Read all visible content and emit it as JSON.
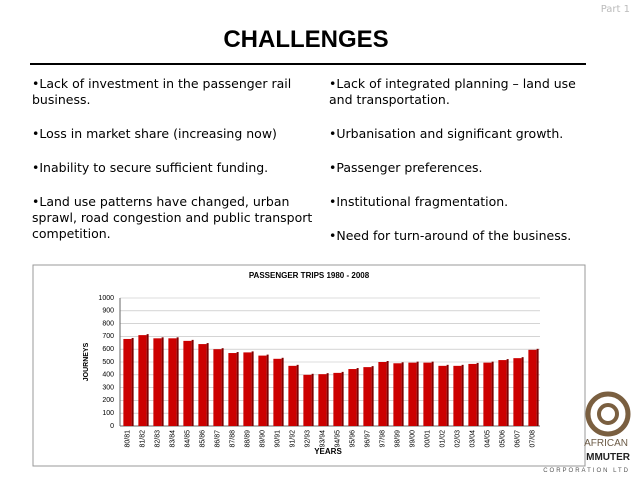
{
  "slide": {
    "part": "Part 1",
    "title": "CHALLENGES",
    "left_bullets": [
      "•Lack of investment in the passenger rail business.",
      "•Loss in market share (increasing now)",
      "•Inability to secure sufficient funding.",
      "•Land use patterns have changed, urban sprawl, road congestion and public transport competition."
    ],
    "right_bullets": [
      "•Lack of integrated planning – land use and transportation.",
      "•Urbanisation and significant growth.",
      "•Passenger preferences.",
      "•Institutional fragmentation.",
      "•Need for turn-around of the business."
    ],
    "logo": [
      "AFRICAN",
      "MMUTER",
      "CORPORATION LTD"
    ]
  },
  "chart_data": {
    "type": "bar",
    "title": "PASSENGER TRIPS 1980 - 2008",
    "x_label": "YEARS",
    "y_label": "JOURNEYS",
    "categories": [
      "80/81",
      "81/82",
      "82/83",
      "83/84",
      "84/85",
      "85/86",
      "86/87",
      "87/88",
      "88/89",
      "89/90",
      "90/91",
      "91/92",
      "92/93",
      "93/94",
      "94/95",
      "95/96",
      "96/97",
      "97/98",
      "98/99",
      "99/00",
      "00/01",
      "01/02",
      "02/03",
      "03/04",
      "04/05",
      "05/06",
      "06/07",
      "07/08"
    ],
    "values": [
      680,
      710,
      685,
      685,
      665,
      640,
      600,
      570,
      575,
      550,
      525,
      470,
      400,
      405,
      415,
      445,
      460,
      500,
      490,
      495,
      495,
      470,
      470,
      485,
      495,
      515,
      530,
      595
    ],
    "color": "#cc0000",
    "ylim": [
      0,
      1000
    ],
    "yticks": [
      0,
      100,
      200,
      300,
      400,
      500,
      600,
      700,
      800,
      900,
      1000
    ],
    "grid": true
  }
}
